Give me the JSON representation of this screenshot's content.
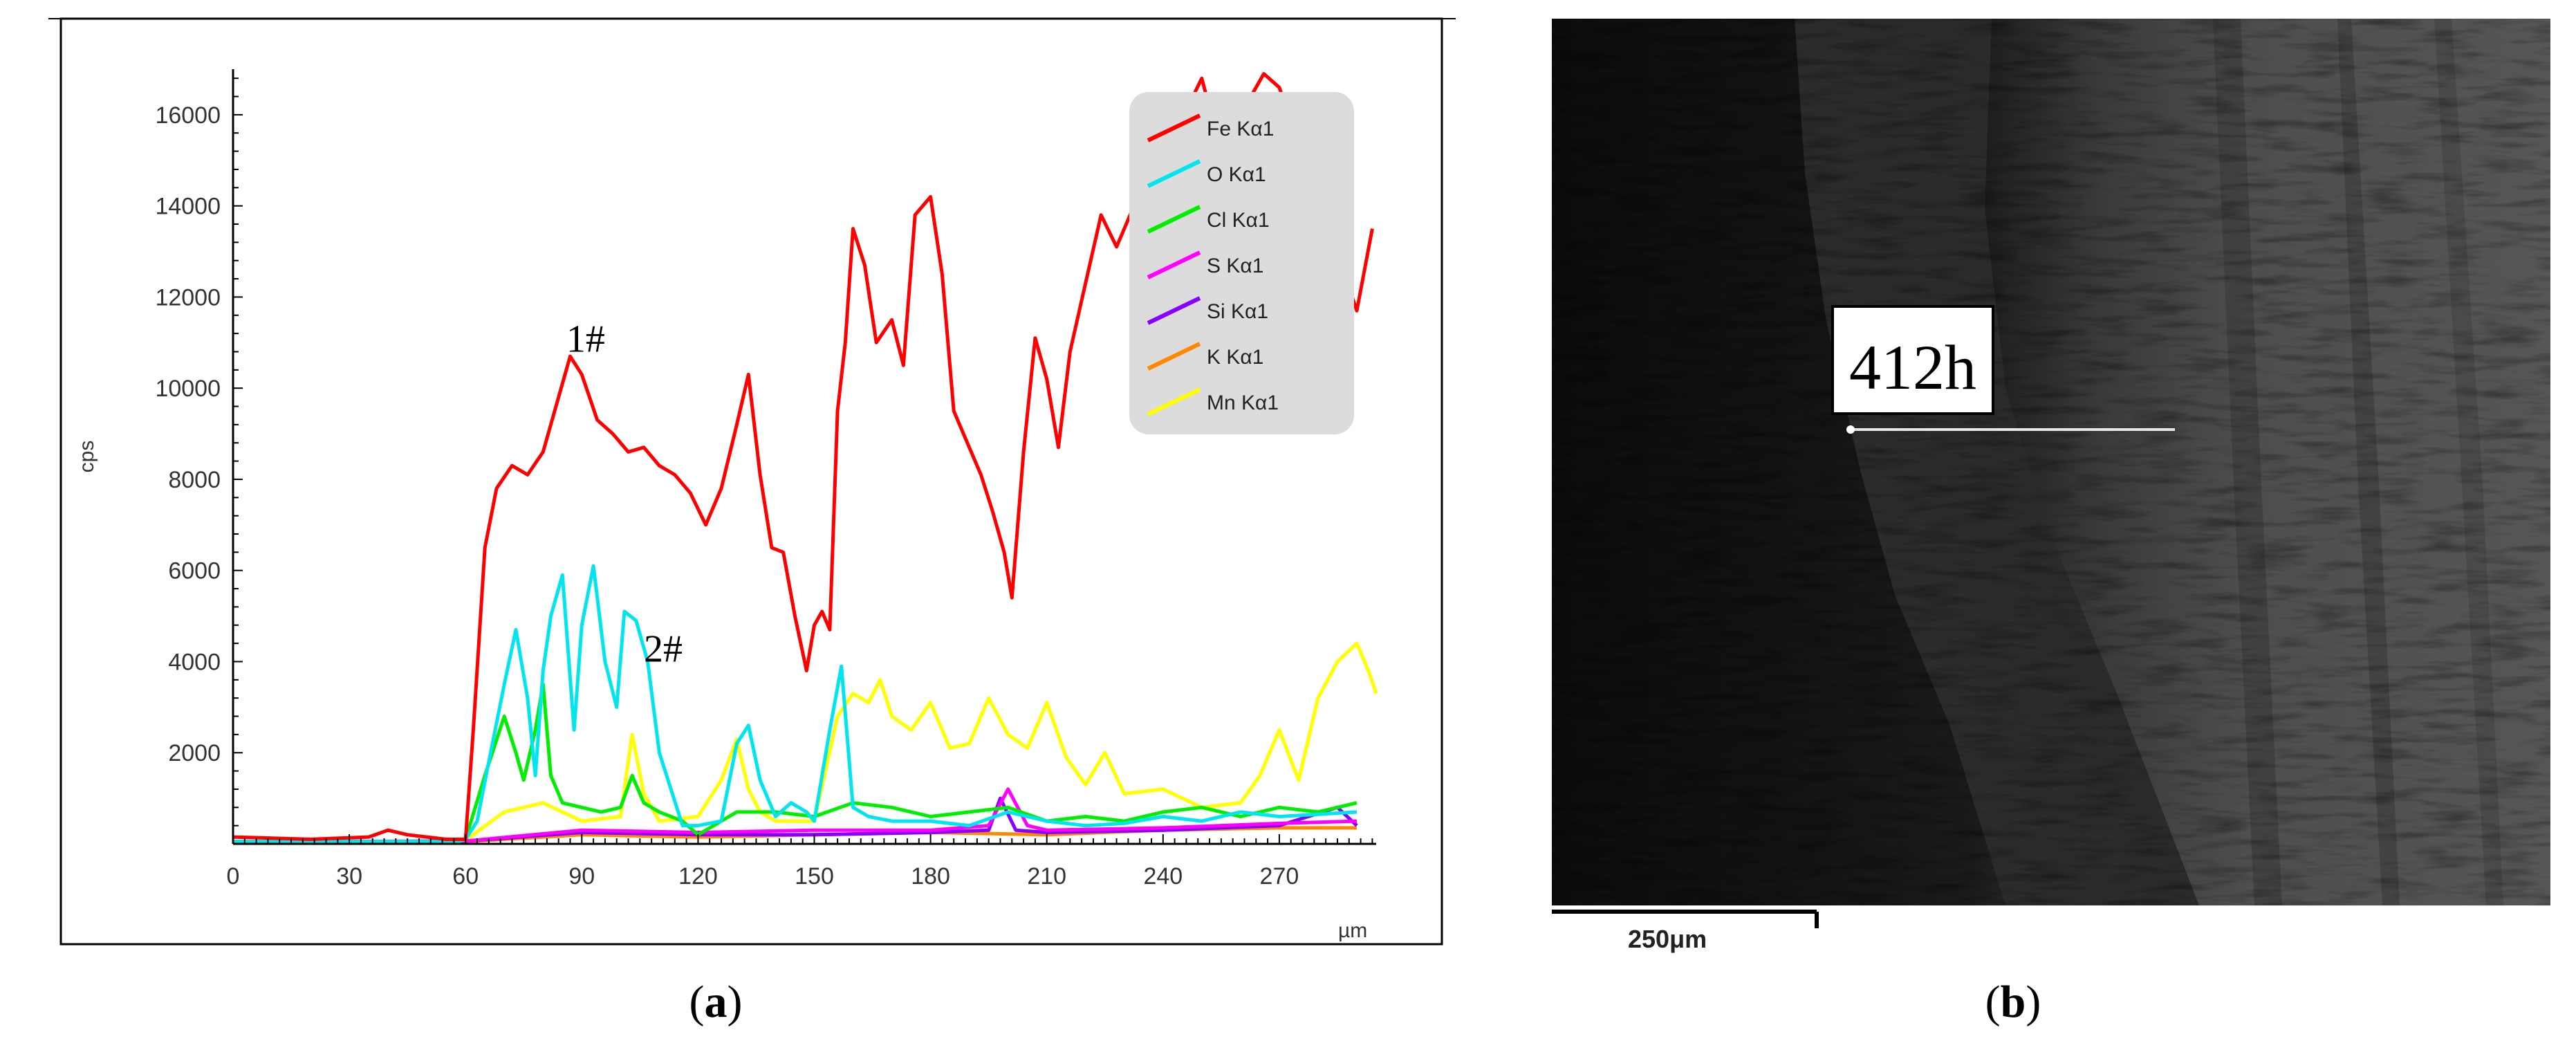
{
  "panels": {
    "a": {
      "label_open": "(",
      "label_letter": "a",
      "label_close": ")"
    },
    "b": {
      "label_open": "(",
      "label_letter": "b",
      "label_close": ")"
    }
  },
  "chart_data": {
    "type": "line",
    "title": "",
    "xlabel": "µm",
    "ylabel": "cps",
    "xlim": [
      0,
      295
    ],
    "ylim": [
      0,
      17000
    ],
    "xticks": [
      0,
      30,
      60,
      90,
      120,
      150,
      180,
      210,
      240,
      270
    ],
    "yticks": [
      2000,
      4000,
      6000,
      8000,
      10000,
      12000,
      14000,
      16000
    ],
    "grid": false,
    "legend": {
      "position": "top-right"
    },
    "annotations": [
      {
        "text": "1#",
        "x": 91,
        "y": 10800
      },
      {
        "text": "2#",
        "x": 111,
        "y": 4000
      }
    ],
    "series": [
      {
        "name": "Fe Kα1",
        "color": "#ff0000",
        "x": [
          0,
          20,
          35,
          40,
          45,
          55,
          60,
          62,
          65,
          68,
          72,
          76,
          80,
          83,
          87,
          90,
          94,
          98,
          102,
          106,
          110,
          114,
          118,
          122,
          126,
          130,
          133,
          136,
          139,
          142,
          145,
          148,
          150,
          152,
          154,
          156,
          158,
          160,
          163,
          166,
          170,
          173,
          176,
          180,
          183,
          186,
          190,
          193,
          196,
          199,
          201,
          204,
          207,
          210,
          213,
          216,
          220,
          224,
          228,
          232,
          236,
          240,
          243,
          246,
          250,
          254,
          258,
          262,
          266,
          270,
          274,
          278,
          282,
          286,
          290,
          294
        ],
        "y": [
          150,
          100,
          150,
          300,
          200,
          100,
          100,
          2500,
          6500,
          7800,
          8300,
          8100,
          8600,
          9500,
          10700,
          10300,
          9300,
          9000,
          8600,
          8700,
          8300,
          8100,
          7700,
          7000,
          7800,
          9200,
          10300,
          8100,
          6500,
          6400,
          5000,
          3800,
          4800,
          5100,
          4700,
          9500,
          11000,
          13500,
          12700,
          11000,
          11500,
          10500,
          13800,
          14200,
          12500,
          9500,
          8700,
          8100,
          7300,
          6400,
          5400,
          8600,
          11100,
          10200,
          8700,
          10800,
          12300,
          13800,
          13100,
          13900,
          14200,
          15800,
          14400,
          16100,
          16800,
          15500,
          15800,
          16300,
          16900,
          16600,
          15600,
          14300,
          13600,
          12700,
          11700,
          13500
        ]
      },
      {
        "name": "O Kα1",
        "color": "#00e5ee",
        "x": [
          0,
          58,
          60,
          63,
          66,
          70,
          73,
          76,
          78,
          80,
          82,
          85,
          88,
          90,
          93,
          96,
          99,
          101,
          104,
          107,
          110,
          113,
          116,
          120,
          126,
          130,
          133,
          136,
          140,
          144,
          148,
          150,
          154,
          157,
          160,
          164,
          170,
          180,
          190,
          200,
          210,
          220,
          230,
          240,
          250,
          260,
          270,
          280,
          290
        ],
        "y": [
          50,
          50,
          100,
          500,
          1800,
          3500,
          4700,
          3200,
          1500,
          3800,
          5000,
          5900,
          2500,
          4800,
          6100,
          4000,
          3000,
          5100,
          4900,
          4000,
          2000,
          1200,
          400,
          400,
          500,
          2200,
          2600,
          1400,
          600,
          900,
          700,
          500,
          2500,
          3900,
          800,
          600,
          500,
          500,
          400,
          700,
          500,
          400,
          450,
          600,
          500,
          700,
          600,
          650,
          700
        ]
      },
      {
        "name": "Cl Kα1",
        "color": "#00ee00",
        "x": [
          0,
          58,
          60,
          65,
          70,
          73,
          75,
          78,
          80,
          82,
          85,
          90,
          95,
          100,
          103,
          106,
          110,
          116,
          120,
          130,
          140,
          150,
          160,
          170,
          180,
          190,
          200,
          210,
          220,
          230,
          240,
          250,
          260,
          270,
          280,
          290
        ],
        "y": [
          50,
          50,
          100,
          1500,
          2800,
          2000,
          1400,
          2500,
          3500,
          1500,
          900,
          800,
          700,
          800,
          1500,
          900,
          700,
          500,
          200,
          700,
          700,
          600,
          900,
          800,
          600,
          700,
          800,
          500,
          600,
          500,
          700,
          800,
          600,
          800,
          700,
          900
        ]
      },
      {
        "name": "S Kα1",
        "color": "#ff00ff",
        "x": [
          0,
          60,
          90,
          120,
          150,
          180,
          195,
          200,
          205,
          210,
          240,
          270,
          290
        ],
        "y": [
          50,
          60,
          300,
          250,
          300,
          300,
          400,
          1200,
          400,
          300,
          350,
          450,
          500
        ]
      },
      {
        "name": "Si Kα1",
        "color": "#8800ff",
        "x": [
          0,
          60,
          90,
          120,
          150,
          180,
          195,
          198,
          202,
          210,
          240,
          270,
          285,
          290
        ],
        "y": [
          40,
          60,
          250,
          200,
          200,
          250,
          300,
          1000,
          300,
          250,
          300,
          400,
          800,
          400
        ]
      },
      {
        "name": "K Kα1",
        "color": "#ff8800",
        "x": [
          0,
          60,
          90,
          120,
          150,
          180,
          210,
          240,
          270,
          290
        ],
        "y": [
          30,
          50,
          200,
          150,
          200,
          250,
          200,
          300,
          350,
          350
        ]
      },
      {
        "name": "Mn Kα1",
        "color": "#ffff00",
        "x": [
          0,
          58,
          60,
          70,
          80,
          90,
          100,
          103,
          106,
          110,
          120,
          126,
          130,
          133,
          136,
          140,
          150,
          156,
          160,
          164,
          167,
          170,
          175,
          180,
          185,
          190,
          195,
          200,
          205,
          210,
          215,
          220,
          225,
          230,
          240,
          250,
          260,
          265,
          270,
          275,
          280,
          285,
          290,
          293,
          295
        ],
        "y": [
          50,
          50,
          80,
          700,
          900,
          500,
          600,
          2400,
          1100,
          500,
          600,
          1400,
          2300,
          1200,
          700,
          500,
          500,
          2800,
          3300,
          3100,
          3600,
          2800,
          2500,
          3100,
          2100,
          2200,
          3200,
          2400,
          2100,
          3100,
          1900,
          1300,
          2000,
          1100,
          1200,
          800,
          900,
          1500,
          2500,
          1400,
          3200,
          4000,
          4400,
          3800,
          3300
        ]
      }
    ]
  },
  "sem_image": {
    "label": "412h",
    "scale_bar_text": "250μm"
  }
}
